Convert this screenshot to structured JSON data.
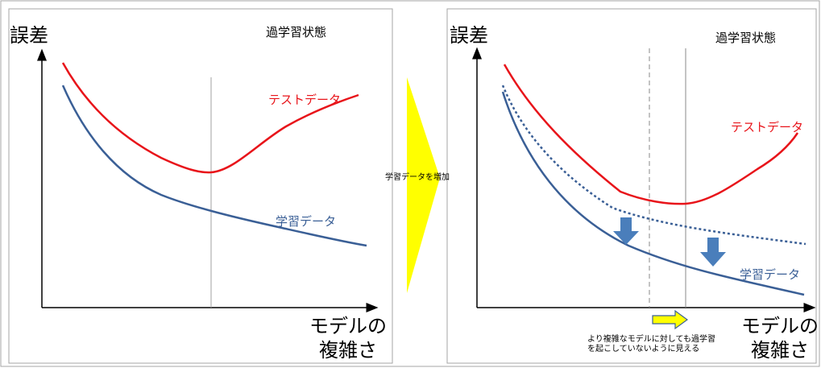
{
  "left_panel": {
    "y_axis_label": "誤差",
    "state_label": "過学習状態",
    "x_axis_label_line1": "モデルの",
    "x_axis_label_line2": "複雑さ",
    "test_curve_label": "テストデータ",
    "train_curve_label": "学習データ"
  },
  "transition": {
    "arrow_label": "学習データを増加",
    "arrow_color": "#ffff00"
  },
  "right_panel": {
    "y_axis_label": "誤差",
    "state_label": "過学習状態",
    "x_axis_label_line1": "モデルの",
    "x_axis_label_line2": "複雑さ",
    "test_curve_label": "テストデータ",
    "train_curve_label": "学習データ",
    "note_line1": "より複雑なモデルに対しても過学習",
    "note_line2": "を起こしていないように見える"
  },
  "colors": {
    "test_curve": "#e8141a",
    "train_curve": "#3a5f96",
    "down_arrow": "#4a7ebb",
    "note_arrow": "#ffff00"
  }
}
